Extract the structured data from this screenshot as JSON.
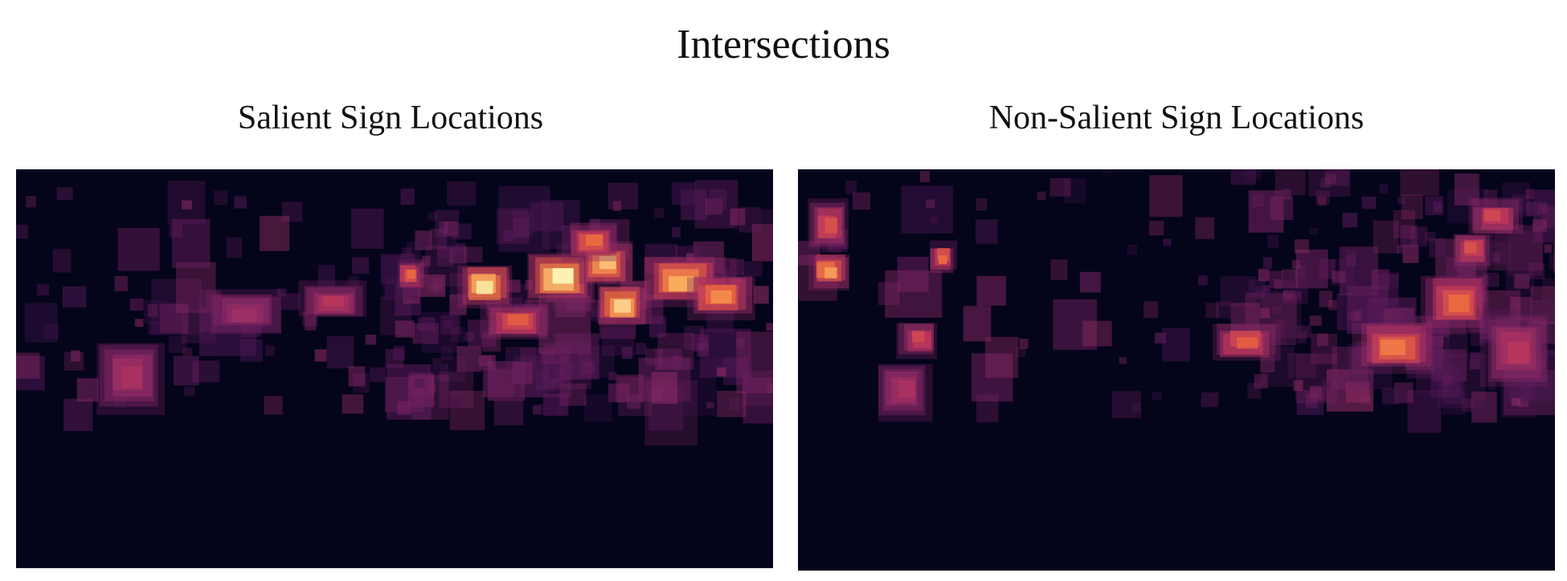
{
  "figure": {
    "suptitle": "Intersections"
  },
  "colors": {
    "background": "#04041a",
    "colormap": [
      "#04041a",
      "#2a1140",
      "#5a1a5b",
      "#8c2a66",
      "#c43a5a",
      "#ef6a3c",
      "#fbb45e",
      "#fcfdbf"
    ]
  },
  "chart_data": [
    {
      "type": "heatmap",
      "title": "Salient Sign Locations",
      "xlabel": "",
      "ylabel": "",
      "grid": false,
      "colormap": "inferno-like",
      "x_range": [
        0,
        1
      ],
      "y_range": [
        0,
        1
      ],
      "hotspots": [
        {
          "x": 0.62,
          "y": 0.29,
          "w": 0.04,
          "h": 0.06,
          "intensity": 0.95
        },
        {
          "x": 0.72,
          "y": 0.27,
          "w": 0.05,
          "h": 0.07,
          "intensity": 1.0
        },
        {
          "x": 0.78,
          "y": 0.24,
          "w": 0.04,
          "h": 0.06,
          "intensity": 0.85
        },
        {
          "x": 0.8,
          "y": 0.34,
          "w": 0.04,
          "h": 0.06,
          "intensity": 0.9
        },
        {
          "x": 0.88,
          "y": 0.28,
          "w": 0.06,
          "h": 0.07,
          "intensity": 0.8
        },
        {
          "x": 0.93,
          "y": 0.32,
          "w": 0.05,
          "h": 0.06,
          "intensity": 0.7
        },
        {
          "x": 0.52,
          "y": 0.26,
          "w": 0.02,
          "h": 0.04,
          "intensity": 0.6
        },
        {
          "x": 0.76,
          "y": 0.18,
          "w": 0.04,
          "h": 0.05,
          "intensity": 0.6
        },
        {
          "x": 0.66,
          "y": 0.38,
          "w": 0.05,
          "h": 0.05,
          "intensity": 0.55
        },
        {
          "x": 0.42,
          "y": 0.33,
          "w": 0.05,
          "h": 0.05,
          "intensity": 0.35
        },
        {
          "x": 0.15,
          "y": 0.52,
          "w": 0.05,
          "h": 0.1,
          "intensity": 0.3
        },
        {
          "x": 0.3,
          "y": 0.36,
          "w": 0.06,
          "h": 0.06,
          "intensity": 0.25
        }
      ],
      "band_y": [
        0.06,
        0.62
      ],
      "density_x_peak": 0.75
    },
    {
      "type": "heatmap",
      "title": "Non-Salient Sign Locations",
      "xlabel": "",
      "ylabel": "",
      "grid": false,
      "colormap": "inferno-like",
      "x_range": [
        0,
        1
      ],
      "y_range": [
        0,
        1
      ],
      "hotspots": [
        {
          "x": 0.04,
          "y": 0.25,
          "w": 0.03,
          "h": 0.05,
          "intensity": 0.75
        },
        {
          "x": 0.19,
          "y": 0.22,
          "w": 0.02,
          "h": 0.04,
          "intensity": 0.6
        },
        {
          "x": 0.04,
          "y": 0.14,
          "w": 0.03,
          "h": 0.07,
          "intensity": 0.5
        },
        {
          "x": 0.16,
          "y": 0.42,
          "w": 0.03,
          "h": 0.05,
          "intensity": 0.45
        },
        {
          "x": 0.59,
          "y": 0.43,
          "w": 0.05,
          "h": 0.05,
          "intensity": 0.55
        },
        {
          "x": 0.79,
          "y": 0.44,
          "w": 0.06,
          "h": 0.07,
          "intensity": 0.65
        },
        {
          "x": 0.87,
          "y": 0.33,
          "w": 0.05,
          "h": 0.08,
          "intensity": 0.6
        },
        {
          "x": 0.89,
          "y": 0.2,
          "w": 0.03,
          "h": 0.05,
          "intensity": 0.5
        },
        {
          "x": 0.92,
          "y": 0.12,
          "w": 0.04,
          "h": 0.05,
          "intensity": 0.45
        },
        {
          "x": 0.95,
          "y": 0.45,
          "w": 0.05,
          "h": 0.1,
          "intensity": 0.35
        },
        {
          "x": 0.14,
          "y": 0.55,
          "w": 0.04,
          "h": 0.08,
          "intensity": 0.3
        }
      ],
      "band_y": [
        0.0,
        0.6
      ],
      "density_x_peak": 0.85
    }
  ]
}
